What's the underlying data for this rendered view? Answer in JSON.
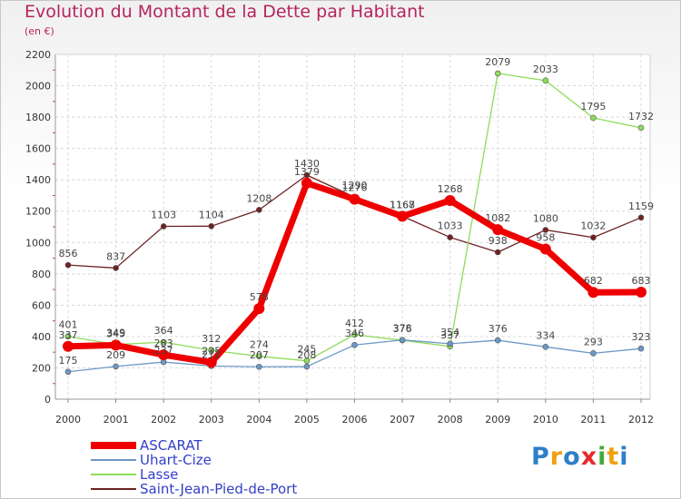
{
  "chart_data": {
    "type": "line",
    "title": "Evolution du Montant de la Dette par Habitant",
    "subtitle": "(en €)",
    "x": [
      "2000",
      "2001",
      "2002",
      "2003",
      "2004",
      "2005",
      "2006",
      "2007",
      "2008",
      "2009",
      "2010",
      "2011",
      "2012"
    ],
    "ylim": [
      0,
      2200
    ],
    "yticks": [
      0,
      200,
      400,
      600,
      800,
      1000,
      1200,
      1400,
      1600,
      1800,
      2000,
      2200
    ],
    "grid": true,
    "legend_position": "bottom-left",
    "series": [
      {
        "name": "ASCARAT",
        "color": "#ee0000",
        "values": [
          337,
          345,
          283,
          235,
          578,
          1379,
          1276,
          1167,
          1268,
          1082,
          958,
          682,
          683
        ],
        "labels": [
          "337",
          "345",
          "283",
          "235",
          "578",
          "1379",
          "1276",
          "1167",
          "1268",
          "1082",
          "958",
          "682",
          "683"
        ]
      },
      {
        "name": "Uhart-Cize",
        "color": "#6c98c6",
        "values": [
          175,
          209,
          237,
          212,
          207,
          208,
          346,
          378,
          354,
          376,
          334,
          293,
          323
        ],
        "labels": [
          "175",
          "209",
          "237",
          "212",
          "207",
          "208",
          "346",
          "378",
          "354",
          "376",
          "334",
          "293",
          "323"
        ]
      },
      {
        "name": "Lasse",
        "color": "#8ddc5a",
        "values": [
          401,
          349,
          364,
          312,
          274,
          245,
          412,
          376,
          337,
          2079,
          2033,
          1795,
          1732
        ],
        "labels": [
          "401",
          "349",
          "364",
          "312",
          "274",
          "245",
          "412",
          "376",
          "337",
          "2079",
          "2033",
          "1795",
          "1732"
        ]
      },
      {
        "name": "Saint-Jean-Pied-de-Port",
        "color": "#6e2222",
        "values": [
          856,
          837,
          1103,
          1104,
          1208,
          1430,
          1290,
          1168,
          1033,
          938,
          1080,
          1032,
          1159
        ],
        "labels": [
          "856",
          "837",
          "1103",
          "1104",
          "1208",
          "1430",
          "1290",
          "1168",
          "1033",
          "938",
          "1080",
          "1032",
          "1159"
        ]
      }
    ]
  },
  "logo": {
    "text": "Proxiti",
    "letters": [
      "P",
      "r",
      "o",
      "x",
      "i",
      "t",
      "i"
    ],
    "colors": [
      "#2d7fc8",
      "#f2a012",
      "#2d7fc8",
      "#e62a2a",
      "#46a83a",
      "#f2a012",
      "#2d7fc8"
    ]
  }
}
